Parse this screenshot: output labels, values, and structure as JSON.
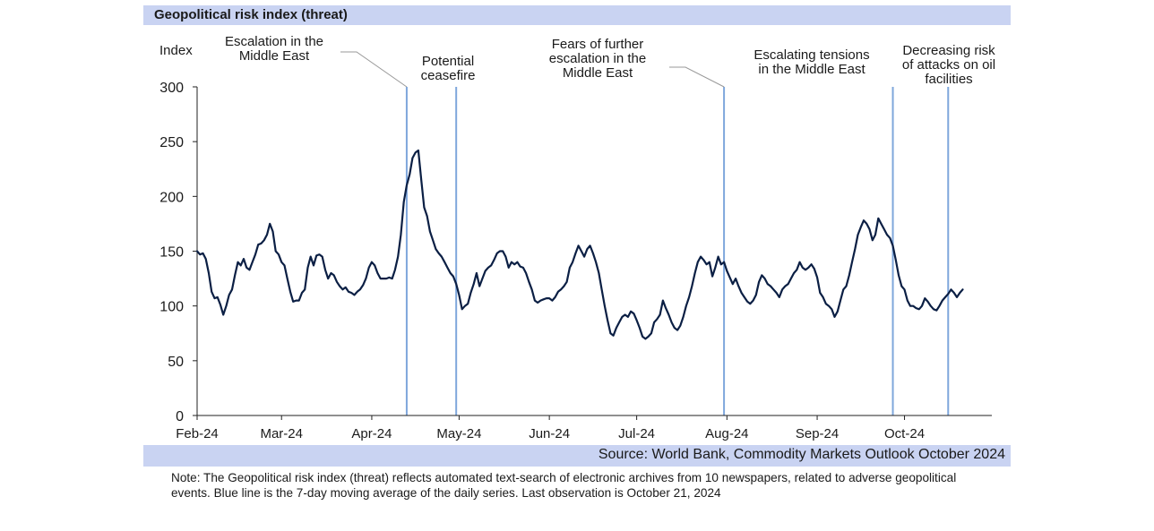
{
  "title": "Geopolitical risk index (threat)",
  "source": "Source: World Bank, Commodity Markets Outlook October 2024",
  "note": "Note: The Geopolitical risk index (threat) reflects automated text-search of electronic archives from 10 newspapers, related to adverse geopolitical events. Blue line is the 7-day moving average of the daily series. Last observation is October 21, 2024",
  "colors": {
    "line": "#0b1f44",
    "event_line": "#7fa7dc",
    "band": "#c9d3f2"
  },
  "chart_data": {
    "type": "line",
    "ylabel": "Index",
    "ylim": [
      0,
      300
    ],
    "yticks": [
      0,
      50,
      100,
      150,
      200,
      250,
      300
    ],
    "xlim": [
      "2024-02-01",
      "2024-10-31"
    ],
    "xticks": [
      {
        "date": "2024-02-01",
        "label": "Feb-24"
      },
      {
        "date": "2024-03-01",
        "label": "Mar-24"
      },
      {
        "date": "2024-04-01",
        "label": "Apr-24"
      },
      {
        "date": "2024-05-01",
        "label": "May-24"
      },
      {
        "date": "2024-06-01",
        "label": "Jun-24"
      },
      {
        "date": "2024-07-01",
        "label": "Jul-24"
      },
      {
        "date": "2024-08-01",
        "label": "Aug-24"
      },
      {
        "date": "2024-09-01",
        "label": "Sep-24"
      },
      {
        "date": "2024-10-01",
        "label": "Oct-24"
      }
    ],
    "events": [
      {
        "date": "2024-04-13",
        "label": [
          "Escalation in the",
          "Middle East"
        ]
      },
      {
        "date": "2024-04-30",
        "label": [
          "Potential",
          "ceasefire"
        ]
      },
      {
        "date": "2024-07-31",
        "label": [
          "Fears of further",
          "escalation in the",
          "Middle East"
        ]
      },
      {
        "date": "2024-09-27",
        "label": [
          "Escalating tensions",
          "in the Middle East"
        ]
      },
      {
        "date": "2024-10-16",
        "label": [
          "Decreasing risk",
          "of attacks on oil",
          "facilities"
        ]
      }
    ],
    "series": [
      {
        "points": [
          [
            "2024-02-01",
            150
          ],
          [
            "2024-02-02",
            147
          ],
          [
            "2024-02-03",
            148
          ],
          [
            "2024-02-04",
            143
          ],
          [
            "2024-02-05",
            130
          ],
          [
            "2024-02-06",
            113
          ],
          [
            "2024-02-07",
            107
          ],
          [
            "2024-02-08",
            108
          ],
          [
            "2024-02-09",
            101
          ],
          [
            "2024-02-10",
            92
          ],
          [
            "2024-02-11",
            100
          ],
          [
            "2024-02-12",
            110
          ],
          [
            "2024-02-13",
            115
          ],
          [
            "2024-02-14",
            128
          ],
          [
            "2024-02-15",
            140
          ],
          [
            "2024-02-16",
            137
          ],
          [
            "2024-02-17",
            143
          ],
          [
            "2024-02-18",
            135
          ],
          [
            "2024-02-19",
            133
          ],
          [
            "2024-02-20",
            140
          ],
          [
            "2024-02-21",
            147
          ],
          [
            "2024-02-22",
            156
          ],
          [
            "2024-02-23",
            157
          ],
          [
            "2024-02-24",
            160
          ],
          [
            "2024-02-25",
            165
          ],
          [
            "2024-02-26",
            175
          ],
          [
            "2024-02-27",
            168
          ],
          [
            "2024-02-28",
            150
          ],
          [
            "2024-02-29",
            147
          ],
          [
            "2024-03-01",
            140
          ],
          [
            "2024-03-02",
            137
          ],
          [
            "2024-03-03",
            125
          ],
          [
            "2024-03-04",
            113
          ],
          [
            "2024-03-05",
            104
          ],
          [
            "2024-03-06",
            105
          ],
          [
            "2024-03-07",
            105
          ],
          [
            "2024-03-08",
            112
          ],
          [
            "2024-03-09",
            115
          ],
          [
            "2024-03-10",
            135
          ],
          [
            "2024-03-11",
            145
          ],
          [
            "2024-03-12",
            137
          ],
          [
            "2024-03-13",
            146
          ],
          [
            "2024-03-14",
            147
          ],
          [
            "2024-03-15",
            145
          ],
          [
            "2024-03-16",
            133
          ],
          [
            "2024-03-17",
            125
          ],
          [
            "2024-03-18",
            130
          ],
          [
            "2024-03-19",
            128
          ],
          [
            "2024-03-20",
            122
          ],
          [
            "2024-03-21",
            118
          ],
          [
            "2024-03-22",
            115
          ],
          [
            "2024-03-23",
            117
          ],
          [
            "2024-03-24",
            113
          ],
          [
            "2024-03-25",
            112
          ],
          [
            "2024-03-26",
            110
          ],
          [
            "2024-03-27",
            113
          ],
          [
            "2024-03-28",
            115
          ],
          [
            "2024-03-29",
            119
          ],
          [
            "2024-03-30",
            125
          ],
          [
            "2024-03-31",
            135
          ],
          [
            "2024-04-01",
            140
          ],
          [
            "2024-04-02",
            137
          ],
          [
            "2024-04-03",
            130
          ],
          [
            "2024-04-04",
            125
          ],
          [
            "2024-04-05",
            125
          ],
          [
            "2024-04-06",
            125
          ],
          [
            "2024-04-07",
            126
          ],
          [
            "2024-04-08",
            125
          ],
          [
            "2024-04-09",
            133
          ],
          [
            "2024-04-10",
            145
          ],
          [
            "2024-04-11",
            165
          ],
          [
            "2024-04-12",
            195
          ],
          [
            "2024-04-13",
            210
          ],
          [
            "2024-04-14",
            220
          ],
          [
            "2024-04-15",
            235
          ],
          [
            "2024-04-16",
            240
          ],
          [
            "2024-04-17",
            242
          ],
          [
            "2024-04-18",
            215
          ],
          [
            "2024-04-19",
            190
          ],
          [
            "2024-04-20",
            182
          ],
          [
            "2024-04-21",
            168
          ],
          [
            "2024-04-22",
            160
          ],
          [
            "2024-04-23",
            152
          ],
          [
            "2024-04-24",
            148
          ],
          [
            "2024-04-25",
            145
          ],
          [
            "2024-04-26",
            140
          ],
          [
            "2024-04-27",
            135
          ],
          [
            "2024-04-28",
            130
          ],
          [
            "2024-04-29",
            127
          ],
          [
            "2024-04-30",
            120
          ],
          [
            "2024-05-01",
            110
          ],
          [
            "2024-05-02",
            97
          ],
          [
            "2024-05-03",
            100
          ],
          [
            "2024-05-04",
            102
          ],
          [
            "2024-05-05",
            112
          ],
          [
            "2024-05-06",
            120
          ],
          [
            "2024-05-07",
            130
          ],
          [
            "2024-05-08",
            118
          ],
          [
            "2024-05-09",
            125
          ],
          [
            "2024-05-10",
            132
          ],
          [
            "2024-05-11",
            135
          ],
          [
            "2024-05-12",
            137
          ],
          [
            "2024-05-13",
            142
          ],
          [
            "2024-05-14",
            148
          ],
          [
            "2024-05-15",
            150
          ],
          [
            "2024-05-16",
            150
          ],
          [
            "2024-05-17",
            145
          ],
          [
            "2024-05-18",
            135
          ],
          [
            "2024-05-19",
            140
          ],
          [
            "2024-05-20",
            138
          ],
          [
            "2024-05-21",
            140
          ],
          [
            "2024-05-22",
            136
          ],
          [
            "2024-05-23",
            135
          ],
          [
            "2024-05-24",
            130
          ],
          [
            "2024-05-25",
            122
          ],
          [
            "2024-05-26",
            115
          ],
          [
            "2024-05-27",
            105
          ],
          [
            "2024-05-28",
            103
          ],
          [
            "2024-05-29",
            105
          ],
          [
            "2024-05-30",
            106
          ],
          [
            "2024-05-31",
            107
          ],
          [
            "2024-06-01",
            107
          ],
          [
            "2024-06-02",
            105
          ],
          [
            "2024-06-03",
            108
          ],
          [
            "2024-06-04",
            113
          ],
          [
            "2024-06-05",
            115
          ],
          [
            "2024-06-06",
            118
          ],
          [
            "2024-06-07",
            122
          ],
          [
            "2024-06-08",
            135
          ],
          [
            "2024-06-09",
            140
          ],
          [
            "2024-06-10",
            148
          ],
          [
            "2024-06-11",
            155
          ],
          [
            "2024-06-12",
            150
          ],
          [
            "2024-06-13",
            145
          ],
          [
            "2024-06-14",
            152
          ],
          [
            "2024-06-15",
            155
          ],
          [
            "2024-06-16",
            148
          ],
          [
            "2024-06-17",
            140
          ],
          [
            "2024-06-18",
            130
          ],
          [
            "2024-06-19",
            115
          ],
          [
            "2024-06-20",
            100
          ],
          [
            "2024-06-21",
            87
          ],
          [
            "2024-06-22",
            75
          ],
          [
            "2024-06-23",
            73
          ],
          [
            "2024-06-24",
            80
          ],
          [
            "2024-06-25",
            85
          ],
          [
            "2024-06-26",
            90
          ],
          [
            "2024-06-27",
            92
          ],
          [
            "2024-06-28",
            90
          ],
          [
            "2024-06-29",
            95
          ],
          [
            "2024-06-30",
            93
          ],
          [
            "2024-07-01",
            87
          ],
          [
            "2024-07-02",
            80
          ],
          [
            "2024-07-03",
            72
          ],
          [
            "2024-07-04",
            70
          ],
          [
            "2024-07-05",
            72
          ],
          [
            "2024-07-06",
            75
          ],
          [
            "2024-07-07",
            85
          ],
          [
            "2024-07-08",
            88
          ],
          [
            "2024-07-09",
            92
          ],
          [
            "2024-07-10",
            105
          ],
          [
            "2024-07-11",
            98
          ],
          [
            "2024-07-12",
            92
          ],
          [
            "2024-07-13",
            85
          ],
          [
            "2024-07-14",
            80
          ],
          [
            "2024-07-15",
            78
          ],
          [
            "2024-07-16",
            82
          ],
          [
            "2024-07-17",
            90
          ],
          [
            "2024-07-18",
            100
          ],
          [
            "2024-07-19",
            108
          ],
          [
            "2024-07-20",
            118
          ],
          [
            "2024-07-21",
            130
          ],
          [
            "2024-07-22",
            140
          ],
          [
            "2024-07-23",
            145
          ],
          [
            "2024-07-24",
            142
          ],
          [
            "2024-07-25",
            138
          ],
          [
            "2024-07-26",
            140
          ],
          [
            "2024-07-27",
            127
          ],
          [
            "2024-07-28",
            135
          ],
          [
            "2024-07-29",
            145
          ],
          [
            "2024-07-30",
            138
          ],
          [
            "2024-07-31",
            140
          ],
          [
            "2024-08-01",
            132
          ],
          [
            "2024-08-02",
            126
          ],
          [
            "2024-08-03",
            120
          ],
          [
            "2024-08-04",
            125
          ],
          [
            "2024-08-05",
            118
          ],
          [
            "2024-08-06",
            112
          ],
          [
            "2024-08-07",
            108
          ],
          [
            "2024-08-08",
            104
          ],
          [
            "2024-08-09",
            102
          ],
          [
            "2024-08-10",
            105
          ],
          [
            "2024-08-11",
            110
          ],
          [
            "2024-08-12",
            122
          ],
          [
            "2024-08-13",
            128
          ],
          [
            "2024-08-14",
            125
          ],
          [
            "2024-08-15",
            120
          ],
          [
            "2024-08-16",
            118
          ],
          [
            "2024-08-17",
            115
          ],
          [
            "2024-08-18",
            112
          ],
          [
            "2024-08-19",
            108
          ],
          [
            "2024-08-20",
            115
          ],
          [
            "2024-08-21",
            118
          ],
          [
            "2024-08-22",
            120
          ],
          [
            "2024-08-23",
            125
          ],
          [
            "2024-08-24",
            130
          ],
          [
            "2024-08-25",
            133
          ],
          [
            "2024-08-26",
            140
          ],
          [
            "2024-08-27",
            135
          ],
          [
            "2024-08-28",
            133
          ],
          [
            "2024-08-29",
            135
          ],
          [
            "2024-08-30",
            138
          ],
          [
            "2024-08-31",
            134
          ],
          [
            "2024-09-01",
            126
          ],
          [
            "2024-09-02",
            112
          ],
          [
            "2024-09-03",
            108
          ],
          [
            "2024-09-04",
            102
          ],
          [
            "2024-09-05",
            100
          ],
          [
            "2024-09-06",
            97
          ],
          [
            "2024-09-07",
            90
          ],
          [
            "2024-09-08",
            95
          ],
          [
            "2024-09-09",
            105
          ],
          [
            "2024-09-10",
            115
          ],
          [
            "2024-09-11",
            118
          ],
          [
            "2024-09-12",
            128
          ],
          [
            "2024-09-13",
            140
          ],
          [
            "2024-09-14",
            152
          ],
          [
            "2024-09-15",
            165
          ],
          [
            "2024-09-16",
            172
          ],
          [
            "2024-09-17",
            178
          ],
          [
            "2024-09-18",
            175
          ],
          [
            "2024-09-19",
            170
          ],
          [
            "2024-09-20",
            160
          ],
          [
            "2024-09-21",
            165
          ],
          [
            "2024-09-22",
            180
          ],
          [
            "2024-09-23",
            175
          ],
          [
            "2024-09-24",
            170
          ],
          [
            "2024-09-25",
            165
          ],
          [
            "2024-09-26",
            162
          ],
          [
            "2024-09-27",
            155
          ],
          [
            "2024-09-28",
            142
          ],
          [
            "2024-09-29",
            128
          ],
          [
            "2024-09-30",
            118
          ],
          [
            "2024-10-01",
            115
          ],
          [
            "2024-10-02",
            105
          ],
          [
            "2024-10-03",
            100
          ],
          [
            "2024-10-04",
            100
          ],
          [
            "2024-10-05",
            98
          ],
          [
            "2024-10-06",
            97
          ],
          [
            "2024-10-07",
            100
          ],
          [
            "2024-10-08",
            107
          ],
          [
            "2024-10-09",
            104
          ],
          [
            "2024-10-10",
            100
          ],
          [
            "2024-10-11",
            97
          ],
          [
            "2024-10-12",
            96
          ],
          [
            "2024-10-13",
            100
          ],
          [
            "2024-10-14",
            105
          ],
          [
            "2024-10-15",
            108
          ],
          [
            "2024-10-16",
            111
          ],
          [
            "2024-10-17",
            115
          ],
          [
            "2024-10-18",
            112
          ],
          [
            "2024-10-19",
            108
          ],
          [
            "2024-10-20",
            112
          ],
          [
            "2024-10-21",
            115
          ]
        ]
      }
    ]
  }
}
